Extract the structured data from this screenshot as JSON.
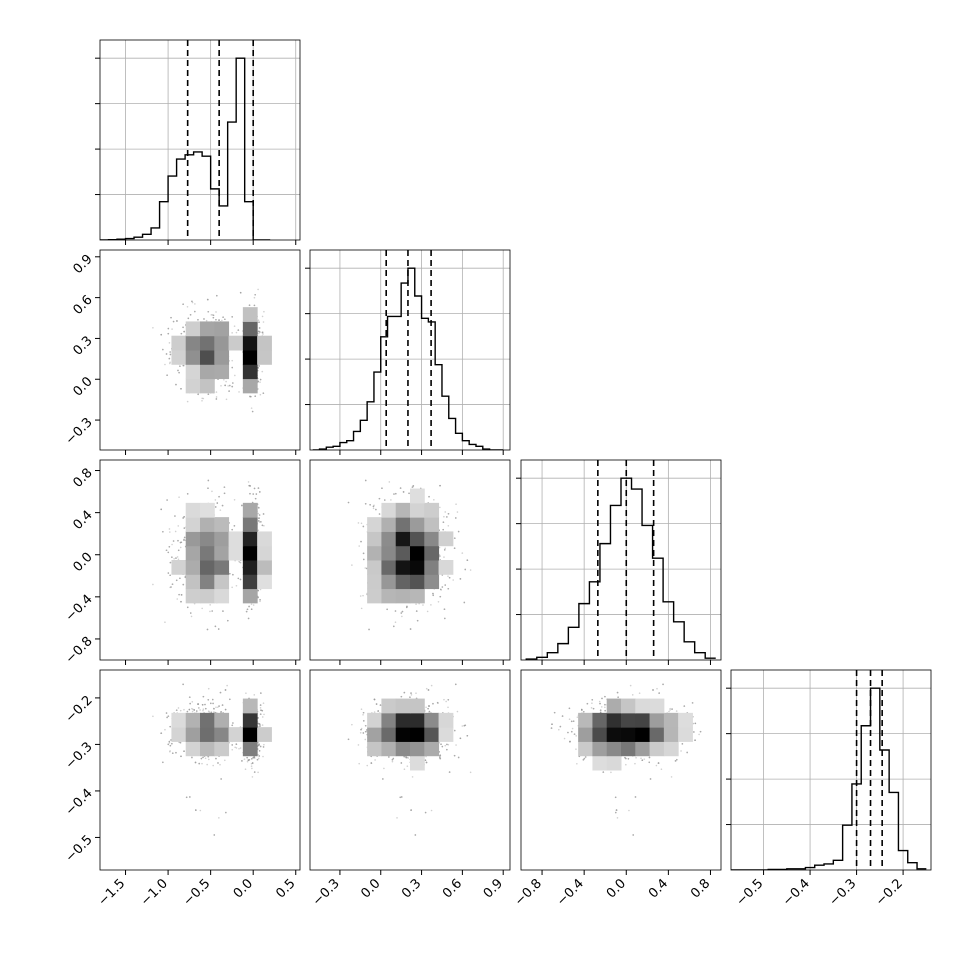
{
  "chart_data": {
    "type": "corner",
    "grid": true,
    "variables": [
      {
        "range": [
          -1.8,
          0.55
        ],
        "ticks": [
          -1.5,
          -1.0,
          -0.5,
          0.0,
          0.5
        ],
        "tick_labels": [
          "−1.5",
          "−1.0",
          "−0.5",
          "0.0",
          "0.5"
        ],
        "quantiles": [
          -0.77,
          -0.4,
          0.0
        ]
      },
      {
        "range": [
          -0.52,
          0.95
        ],
        "ticks": [
          -0.3,
          0.0,
          0.3,
          0.6,
          0.9
        ],
        "tick_labels": [
          "−0.3",
          "0.0",
          "0.3",
          "0.6",
          "0.9"
        ],
        "quantiles": [
          0.04,
          0.2,
          0.37
        ]
      },
      {
        "range": [
          -1.0,
          0.9
        ],
        "ticks": [
          -0.8,
          -0.4,
          0.0,
          0.4,
          0.8
        ],
        "tick_labels": [
          "−0.8",
          "−0.4",
          "0.0",
          "0.4",
          "0.8"
        ],
        "quantiles": [
          -0.27,
          0.0,
          0.26
        ]
      },
      {
        "range": [
          -0.57,
          -0.14
        ],
        "ticks": [
          -0.5,
          -0.4,
          -0.3,
          -0.2
        ],
        "tick_labels": [
          "−0.5",
          "−0.4",
          "−0.3",
          "−0.2"
        ],
        "quantiles": [
          -0.3,
          -0.27,
          -0.245
        ]
      }
    ],
    "histograms": [
      {
        "bin_edges": [
          -1.8,
          -1.7,
          -1.6,
          -1.5,
          -1.4,
          -1.3,
          -1.2,
          -1.1,
          -1.0,
          -0.9,
          -0.8,
          -0.7,
          -0.6,
          -0.5,
          -0.4,
          -0.3,
          -0.2,
          -0.1,
          0.0,
          0.1,
          0.2
        ],
        "counts": [
          0,
          2,
          6,
          10,
          20,
          40,
          85,
          270,
          450,
          570,
          600,
          620,
          590,
          360,
          240,
          830,
          1280,
          270,
          0,
          0
        ]
      },
      {
        "bin_edges": [
          -0.5,
          -0.45,
          -0.4,
          -0.35,
          -0.3,
          -0.25,
          -0.2,
          -0.15,
          -0.1,
          -0.05,
          0.0,
          0.05,
          0.1,
          0.15,
          0.2,
          0.25,
          0.3,
          0.35,
          0.4,
          0.45,
          0.5,
          0.55,
          0.6,
          0.65,
          0.7,
          0.75,
          0.8,
          0.85,
          0.9
        ],
        "counts": [
          0,
          5,
          15,
          20,
          40,
          50,
          100,
          160,
          260,
          420,
          610,
          720,
          720,
          900,
          980,
          830,
          710,
          690,
          460,
          290,
          170,
          90,
          50,
          30,
          20,
          5,
          0,
          0
        ]
      },
      {
        "bin_edges": [
          -0.95,
          -0.85,
          -0.75,
          -0.65,
          -0.55,
          -0.45,
          -0.35,
          -0.25,
          -0.15,
          -0.05,
          0.05,
          0.15,
          0.25,
          0.35,
          0.45,
          0.55,
          0.65,
          0.75,
          0.85
        ],
        "counts": [
          5,
          15,
          40,
          90,
          180,
          310,
          430,
          640,
          850,
          1000,
          940,
          740,
          560,
          320,
          210,
          100,
          40,
          10
        ]
      },
      {
        "bin_edges": [
          -0.57,
          -0.55,
          -0.53,
          -0.51,
          -0.49,
          -0.47,
          -0.45,
          -0.43,
          -0.41,
          -0.39,
          -0.37,
          -0.35,
          -0.33,
          -0.31,
          -0.29,
          -0.27,
          -0.25,
          -0.23,
          -0.21,
          -0.19,
          -0.17,
          -0.15
        ],
        "counts": [
          0,
          0,
          0,
          0,
          5,
          5,
          10,
          10,
          20,
          40,
          50,
          80,
          370,
          710,
          1190,
          1500,
          990,
          640,
          160,
          60,
          10
        ]
      }
    ],
    "contour_levels": 4,
    "sample_points": 4000
  }
}
